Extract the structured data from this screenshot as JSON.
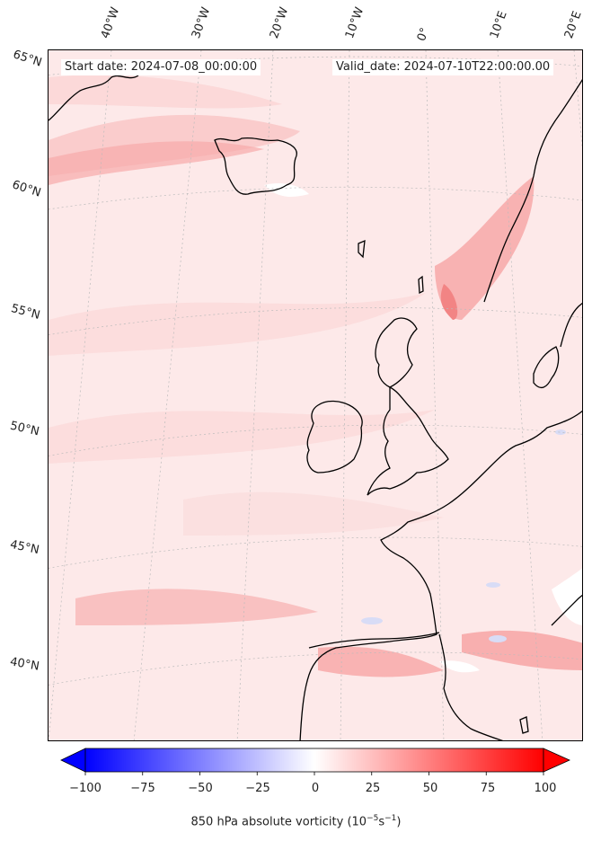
{
  "header": {
    "start_date": "Start date: 2024-07-08_00:00:00",
    "valid_date": "Valid_date: 2024-07-10T22:00:00.00"
  },
  "lon_labels": [
    "40°W",
    "30°W",
    "20°W",
    "10°W",
    "0°",
    "10°E",
    "20°E"
  ],
  "lat_labels": [
    "65°N",
    "60°N",
    "55°N",
    "50°N",
    "45°N",
    "40°N"
  ],
  "colorbar": {
    "ticks": [
      "−100",
      "−75",
      "−50",
      "−25",
      "0",
      "25",
      "50",
      "75",
      "100"
    ],
    "label_text": "850 hPa absolute vorticity (10",
    "label_exp1": "−5",
    "label_mid": "s",
    "label_exp2": "−1",
    "label_end": ")",
    "min": -100,
    "max": 100,
    "colormap": "bwr",
    "extend": "both"
  },
  "colors": {
    "background_field": "#fde9e9",
    "coastline": "#000000",
    "gridline": "#bbbbbb"
  }
}
